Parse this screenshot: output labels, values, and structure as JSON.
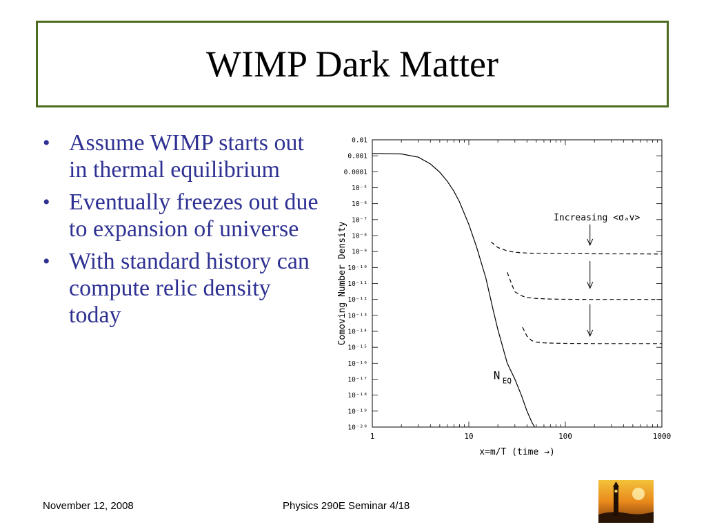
{
  "slide": {
    "title": "WIMP Dark Matter",
    "bullets": [
      "Assume WIMP starts out in thermal equilibrium",
      "Eventually freezes out due to expansion of universe",
      "With standard history can compute relic density today"
    ],
    "footer_date": "November 12, 2008",
    "footer_center": "Physics 290E Seminar 4/18"
  },
  "colors": {
    "title_border": "#4b6b1f",
    "bullet_text": "#2e3192"
  },
  "chart_data": {
    "type": "line",
    "x_scale": "log",
    "y_scale": "log",
    "xlim": [
      1,
      1000
    ],
    "ylim": [
      1e-20,
      0.01
    ],
    "xlabel": "x=m/T (time →)",
    "ylabel": "Comoving Number Density",
    "x_ticks": [
      "1",
      "10",
      "100",
      "1000"
    ],
    "y_ticks": [
      "10⁻²⁰",
      "10⁻¹⁹",
      "10⁻¹⁸",
      "10⁻¹⁷",
      "10⁻¹⁶",
      "10⁻¹⁵",
      "10⁻¹⁴",
      "10⁻¹³",
      "10⁻¹²",
      "10⁻¹¹",
      "10⁻¹⁰",
      "10⁻⁹",
      "10⁻⁸",
      "10⁻⁷",
      "10⁻⁶",
      "10⁻⁵",
      "0.0001",
      "0.001",
      "0.01"
    ],
    "annotation": "Increasing <σₐv>",
    "curve_label": "N",
    "curve_label_sub": "EQ",
    "series": [
      {
        "name": "N_EQ",
        "style": "solid",
        "x": [
          1,
          2,
          3,
          4,
          5,
          6,
          7,
          8,
          10,
          12,
          15,
          18,
          20,
          25,
          30,
          35,
          40,
          45,
          48
        ],
        "y": [
          0.0014,
          0.0013,
          0.00082,
          0.00031,
          9.3e-05,
          2.5e-05,
          6e-06,
          1.3e-06,
          5e-08,
          2e-09,
          2.2e-11,
          1.8e-13,
          1.3e-14,
          1e-16,
          1e-17,
          1e-18,
          1e-19,
          2e-20,
          1e-20
        ]
      },
      {
        "style": "dashed",
        "x": [
          17,
          20,
          25,
          30,
          40,
          60,
          100,
          200,
          500,
          1000
        ],
        "y": [
          4e-09,
          1.8e-09,
          1.1e-09,
          9e-10,
          8e-10,
          7.6e-10,
          7.4e-10,
          7.2e-10,
          7.1e-10,
          7e-10
        ]
      },
      {
        "style": "dashed",
        "x": [
          25,
          28,
          30,
          35,
          40,
          50,
          70,
          100,
          200,
          500,
          1000
        ],
        "y": [
          5e-11,
          8e-12,
          3e-12,
          1.7e-12,
          1.3e-12,
          1.15e-12,
          1.05e-12,
          1.02e-12,
          1e-12,
          1e-12,
          1e-12
        ]
      },
      {
        "style": "dashed",
        "x": [
          36,
          40,
          45,
          50,
          60,
          80,
          100,
          200,
          500,
          1000
        ],
        "y": [
          1.8e-14,
          5e-15,
          2.6e-15,
          2.1e-15,
          1.9e-15,
          1.8e-15,
          1.75e-15,
          1.7e-15,
          1.7e-15,
          1.7e-15
        ]
      }
    ],
    "arrows_at_x": 180
  }
}
